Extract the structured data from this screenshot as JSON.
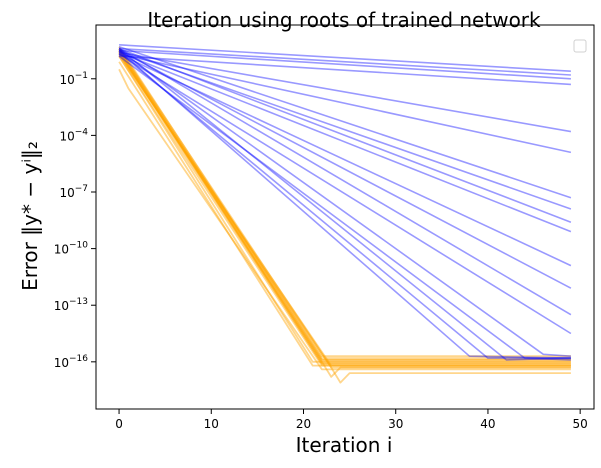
{
  "chart_data": {
    "type": "line",
    "title": "Iteration using roots of trained network",
    "xlabel": "Iteration  i",
    "ylabel": "Error  ‖y* − yⁱ‖₂",
    "xlim": [
      -2.5,
      51.5
    ],
    "ylog": true,
    "ylim_log10": [
      -18.5,
      1.85
    ],
    "xticks": [
      0,
      10,
      20,
      30,
      40,
      50
    ],
    "yticks_log10": [
      -1,
      -4,
      -7,
      -10,
      -13,
      -16
    ],
    "ytick_base": "10",
    "legend": {
      "placement": "top-right",
      "entries": []
    },
    "grid": false,
    "colors": {
      "blue": "#0000ff",
      "orange": "#ffa500"
    },
    "series_blue": [
      {
        "x": [
          0,
          49
        ],
        "log10y": [
          0.8,
          -0.6
        ]
      },
      {
        "x": [
          0,
          49
        ],
        "log10y": [
          0.5,
          -1.0
        ]
      },
      {
        "x": [
          0,
          49
        ],
        "log10y": [
          0.2,
          -1.3
        ]
      },
      {
        "x": [
          0,
          49
        ],
        "log10y": [
          0.6,
          -0.8
        ]
      },
      {
        "x": [
          0,
          49
        ],
        "log10y": [
          0.4,
          -3.8
        ]
      },
      {
        "x": [
          0,
          49
        ],
        "log10y": [
          0.3,
          -4.9
        ]
      },
      {
        "x": [
          0,
          49
        ],
        "log10y": [
          0.7,
          -7.3
        ]
      },
      {
        "x": [
          0,
          49
        ],
        "log10y": [
          0.5,
          -7.9
        ]
      },
      {
        "x": [
          0,
          49
        ],
        "log10y": [
          0.6,
          -8.6
        ]
      },
      {
        "x": [
          0,
          49
        ],
        "log10y": [
          0.4,
          -9.1
        ]
      },
      {
        "x": [
          0,
          49
        ],
        "log10y": [
          0.3,
          -10.9
        ]
      },
      {
        "x": [
          0,
          49
        ],
        "log10y": [
          0.5,
          -12.1
        ]
      },
      {
        "x": [
          0,
          49
        ],
        "log10y": [
          0.6,
          -13.5
        ]
      },
      {
        "x": [
          0,
          49
        ],
        "log10y": [
          0.3,
          -14.5
        ]
      },
      {
        "x": [
          0,
          38,
          49
        ],
        "log10y": [
          0.5,
          -15.7,
          -15.8
        ]
      },
      {
        "x": [
          0,
          40,
          49
        ],
        "log10y": [
          0.4,
          -15.8,
          -15.8
        ]
      },
      {
        "x": [
          0,
          42,
          49
        ],
        "log10y": [
          0.6,
          -15.9,
          -15.8
        ]
      },
      {
        "x": [
          0,
          44,
          49
        ],
        "log10y": [
          0.2,
          -15.8,
          -15.9
        ]
      },
      {
        "x": [
          0,
          46,
          49
        ],
        "log10y": [
          0.5,
          -15.6,
          -15.7
        ]
      }
    ],
    "series_orange": [
      {
        "x": [
          0,
          22,
          49
        ],
        "log10y": [
          0.7,
          -15.8,
          -15.8
        ]
      },
      {
        "x": [
          0,
          22,
          49
        ],
        "log10y": [
          0.6,
          -15.9,
          -15.9
        ]
      },
      {
        "x": [
          0,
          22,
          49
        ],
        "log10y": [
          0.5,
          -16.0,
          -16.0
        ]
      },
      {
        "x": [
          0,
          22,
          49
        ],
        "log10y": [
          0.4,
          -16.1,
          -16.1
        ]
      },
      {
        "x": [
          0,
          23,
          49
        ],
        "log10y": [
          0.3,
          -16.2,
          -16.2
        ]
      },
      {
        "x": [
          0,
          22,
          49
        ],
        "log10y": [
          0.5,
          -15.7,
          -15.7
        ]
      },
      {
        "x": [
          0,
          21,
          49
        ],
        "log10y": [
          0.2,
          -16.0,
          -16.0
        ]
      },
      {
        "x": [
          0,
          23,
          49
        ],
        "log10y": [
          0.6,
          -16.3,
          -16.3
        ]
      },
      {
        "x": [
          0,
          22,
          49
        ],
        "log10y": [
          0.4,
          -15.9,
          -15.9
        ]
      },
      {
        "x": [
          0,
          22,
          49
        ],
        "log10y": [
          0.5,
          -16.1,
          -16.1
        ]
      },
      {
        "x": [
          0,
          23,
          24,
          25,
          49
        ],
        "log10y": [
          0.3,
          -16.3,
          -17.1,
          -16.6,
          -16.6
        ]
      },
      {
        "x": [
          0,
          22,
          23,
          24,
          49
        ],
        "log10y": [
          0.4,
          -16.0,
          -16.8,
          -16.3,
          -16.3
        ]
      },
      {
        "x": [
          0,
          1,
          22,
          49
        ],
        "log10y": [
          -0.5,
          -1.5,
          -16.4,
          -16.4
        ]
      },
      {
        "x": [
          0,
          21,
          49
        ],
        "log10y": [
          -0.1,
          -16.2,
          -16.2
        ]
      },
      {
        "x": [
          0,
          22,
          49
        ],
        "log10y": [
          0.2,
          -16.2,
          -16.2
        ]
      }
    ]
  }
}
